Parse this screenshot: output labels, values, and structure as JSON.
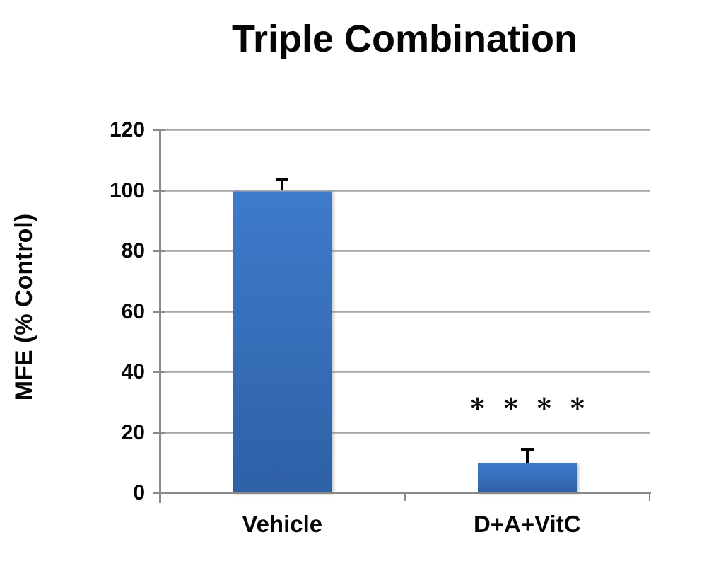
{
  "chart_data": {
    "type": "bar",
    "title": "Triple Combination",
    "ylabel": "MFE (% Control)",
    "xlabel": "",
    "categories": [
      "Vehicle",
      "D+A+VitC"
    ],
    "values": [
      100,
      10
    ],
    "errors_plus": [
      4,
      5
    ],
    "yticks": [
      0,
      20,
      40,
      60,
      80,
      100,
      120
    ],
    "ylim": [
      0,
      120
    ],
    "grid": true,
    "legend_position": "none",
    "annotations": [
      {
        "text": "****",
        "category": "D+A+VitC",
        "meaning": "significance-stars"
      }
    ],
    "colors": {
      "bar_gradient_top": "#3E7BCB",
      "bar_gradient_bottom": "#2E61A6",
      "gridline": "#a6a6a6",
      "gridline_shadow": "#dedede",
      "axis": "#8a8a8a",
      "error_bar": "#000000",
      "text": "#050505"
    }
  }
}
